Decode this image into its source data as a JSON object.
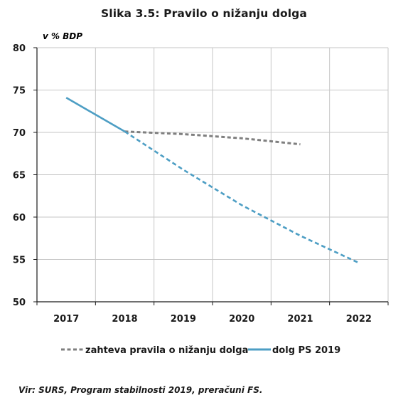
{
  "title": "Slika 3.5: Pravilo o nižanju dolga",
  "source": "Vir: SURS, Program stabilnosti 2019, preračuni FS.",
  "colors": {
    "rule_series": "#7f7f7f",
    "debt_series": "#4d9ec4",
    "grid": "#c6c6c6",
    "axis": "#1a1a1a"
  },
  "chart_data": {
    "type": "line",
    "title": "Slika 3.5: Pravilo o nižanju dolga",
    "ylabel": "v % BDP",
    "xlabel": "",
    "categories": [
      "2017",
      "2018",
      "2019",
      "2020",
      "2021",
      "2022"
    ],
    "ylim": [
      50,
      80
    ],
    "yticks": [
      50,
      55,
      60,
      65,
      70,
      75,
      80
    ],
    "grid": true,
    "legend": "bottom",
    "series": [
      {
        "name": "zahteva pravila o nižanju dolga",
        "style": "dashed",
        "color": "#7f7f7f",
        "values": [
          null,
          70.1,
          69.8,
          69.3,
          68.6,
          null
        ]
      },
      {
        "name": "dolg PS 2019",
        "style": "solid-then-dashed",
        "solid_until": "2018",
        "color": "#4d9ec4",
        "values": [
          74.1,
          70.1,
          65.6,
          61.4,
          57.8,
          54.6
        ]
      }
    ]
  }
}
